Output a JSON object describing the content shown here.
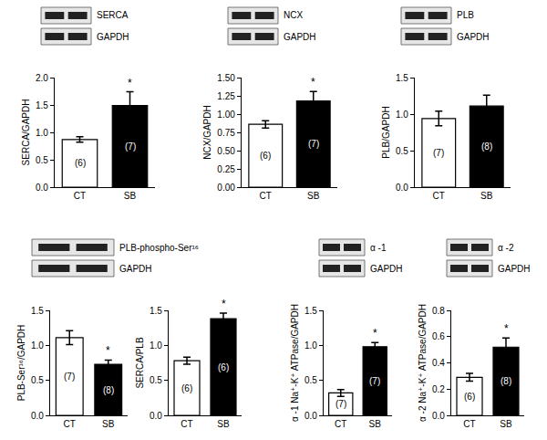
{
  "chart_data": [
    {
      "type": "bar",
      "ylabel": "SERCA/GAPDH",
      "blot_labels": [
        "SERCA",
        "GAPDH"
      ],
      "categories": [
        "CT",
        "SB"
      ],
      "values": [
        0.87,
        1.49
      ],
      "errors": [
        0.05,
        0.25
      ],
      "n_labels": [
        "(6)",
        "(7)"
      ],
      "stars": [
        null,
        "*"
      ],
      "colors": [
        "#ffffff",
        "#000000"
      ],
      "ylim": [
        0,
        2.0
      ],
      "yticks": [
        {
          "value": 0,
          "label": "0.0"
        },
        {
          "value": 0.5,
          "label": "0.5"
        },
        {
          "value": 1,
          "label": "1.0"
        },
        {
          "value": 1.5,
          "label": "1.5"
        },
        {
          "value": 2,
          "label": "2.0"
        }
      ]
    },
    {
      "type": "bar",
      "ylabel": "NCX/GAPDH",
      "blot_labels": [
        "NCX",
        "GAPDH"
      ],
      "categories": [
        "CT",
        "SB"
      ],
      "values": [
        0.86,
        1.18
      ],
      "errors": [
        0.05,
        0.13
      ],
      "n_labels": [
        "(6)",
        "(7)"
      ],
      "stars": [
        null,
        "*"
      ],
      "colors": [
        "#ffffff",
        "#000000"
      ],
      "ylim": [
        0,
        1.5
      ],
      "yticks": [
        {
          "value": 0,
          "label": "0.00"
        },
        {
          "value": 0.25,
          "label": "0.25"
        },
        {
          "value": 0.5,
          "label": "0.50"
        },
        {
          "value": 0.75,
          "label": "0.75"
        },
        {
          "value": 1,
          "label": "1.00"
        },
        {
          "value": 1.25,
          "label": "1.25"
        },
        {
          "value": 1.5,
          "label": "1.50"
        }
      ]
    },
    {
      "type": "bar",
      "ylabel": "PLB/GAPDH",
      "blot_labels": [
        "PLB",
        "GAPDH"
      ],
      "categories": [
        "CT",
        "SB"
      ],
      "values": [
        0.94,
        1.11
      ],
      "errors": [
        0.1,
        0.15
      ],
      "n_labels": [
        "(7)",
        "(8)"
      ],
      "stars": [
        null,
        null
      ],
      "colors": [
        "#ffffff",
        "#000000"
      ],
      "ylim": [
        0,
        1.5
      ],
      "yticks": [
        {
          "value": 0,
          "label": "0.0"
        },
        {
          "value": 0.5,
          "label": "0.5"
        },
        {
          "value": 1,
          "label": "1.0"
        },
        {
          "value": 1.5,
          "label": "1.5"
        }
      ]
    },
    {
      "type": "bar",
      "ylabel": "PLB-Ser¹⁶/GAPDH",
      "blot_labels": [
        "PLB-phospho-Ser¹⁶",
        "GAPDH"
      ],
      "categories": [
        "CT",
        "SB"
      ],
      "values": [
        1.11,
        0.73
      ],
      "errors": [
        0.1,
        0.06
      ],
      "n_labels": [
        "(7)",
        "(8)"
      ],
      "stars": [
        null,
        "*"
      ],
      "colors": [
        "#ffffff",
        "#000000"
      ],
      "ylim": [
        0,
        1.5
      ],
      "yticks": [
        {
          "value": 0,
          "label": "0.0"
        },
        {
          "value": 0.5,
          "label": "0.5"
        },
        {
          "value": 1,
          "label": "1.0"
        },
        {
          "value": 1.5,
          "label": "1.5"
        }
      ]
    },
    {
      "type": "bar",
      "ylabel": "SERCA/PLB",
      "categories": [
        "CT",
        "SB"
      ],
      "values": [
        0.78,
        1.38
      ],
      "errors": [
        0.05,
        0.08
      ],
      "n_labels": [
        "(6)",
        "(6)"
      ],
      "stars": [
        null,
        "*"
      ],
      "colors": [
        "#ffffff",
        "#000000"
      ],
      "ylim": [
        0,
        1.5
      ],
      "yticks": [
        {
          "value": 0,
          "label": "0.0"
        },
        {
          "value": 0.5,
          "label": "0.5"
        },
        {
          "value": 1,
          "label": "1.0"
        },
        {
          "value": 1.5,
          "label": "1.5"
        }
      ]
    },
    {
      "type": "bar",
      "ylabel": "α -1 Na⁺-K⁺ ATPase/GAPDH",
      "blot_labels": [
        "α -1",
        "GAPDH"
      ],
      "categories": [
        "CT",
        "SB"
      ],
      "values": [
        0.32,
        0.98
      ],
      "errors": [
        0.05,
        0.06
      ],
      "n_labels": [
        "(7)",
        "(7)"
      ],
      "stars": [
        null,
        "*"
      ],
      "colors": [
        "#ffffff",
        "#000000"
      ],
      "ylim": [
        0,
        1.5
      ],
      "yticks": [
        {
          "value": 0,
          "label": "0.0"
        },
        {
          "value": 0.5,
          "label": "0.5"
        },
        {
          "value": 1,
          "label": "1.0"
        },
        {
          "value": 1.5,
          "label": "1.5"
        }
      ]
    },
    {
      "type": "bar",
      "ylabel": "α -2 Na⁺-K⁺ ATPase/GAPDH",
      "blot_labels": [
        "α -2",
        "GAPDH"
      ],
      "categories": [
        "CT",
        "SB"
      ],
      "values": [
        0.29,
        0.52
      ],
      "errors": [
        0.03,
        0.07
      ],
      "n_labels": [
        "(6)",
        "(8)"
      ],
      "stars": [
        null,
        "*"
      ],
      "colors": [
        "#ffffff",
        "#000000"
      ],
      "ylim": [
        0,
        0.8
      ],
      "yticks": [
        {
          "value": 0,
          "label": "0.0"
        },
        {
          "value": 0.2,
          "label": "0.2"
        },
        {
          "value": 0.4,
          "label": "0.4"
        },
        {
          "value": 0.6,
          "label": "0.6"
        },
        {
          "value": 0.8,
          "label": "0.8"
        }
      ]
    }
  ]
}
